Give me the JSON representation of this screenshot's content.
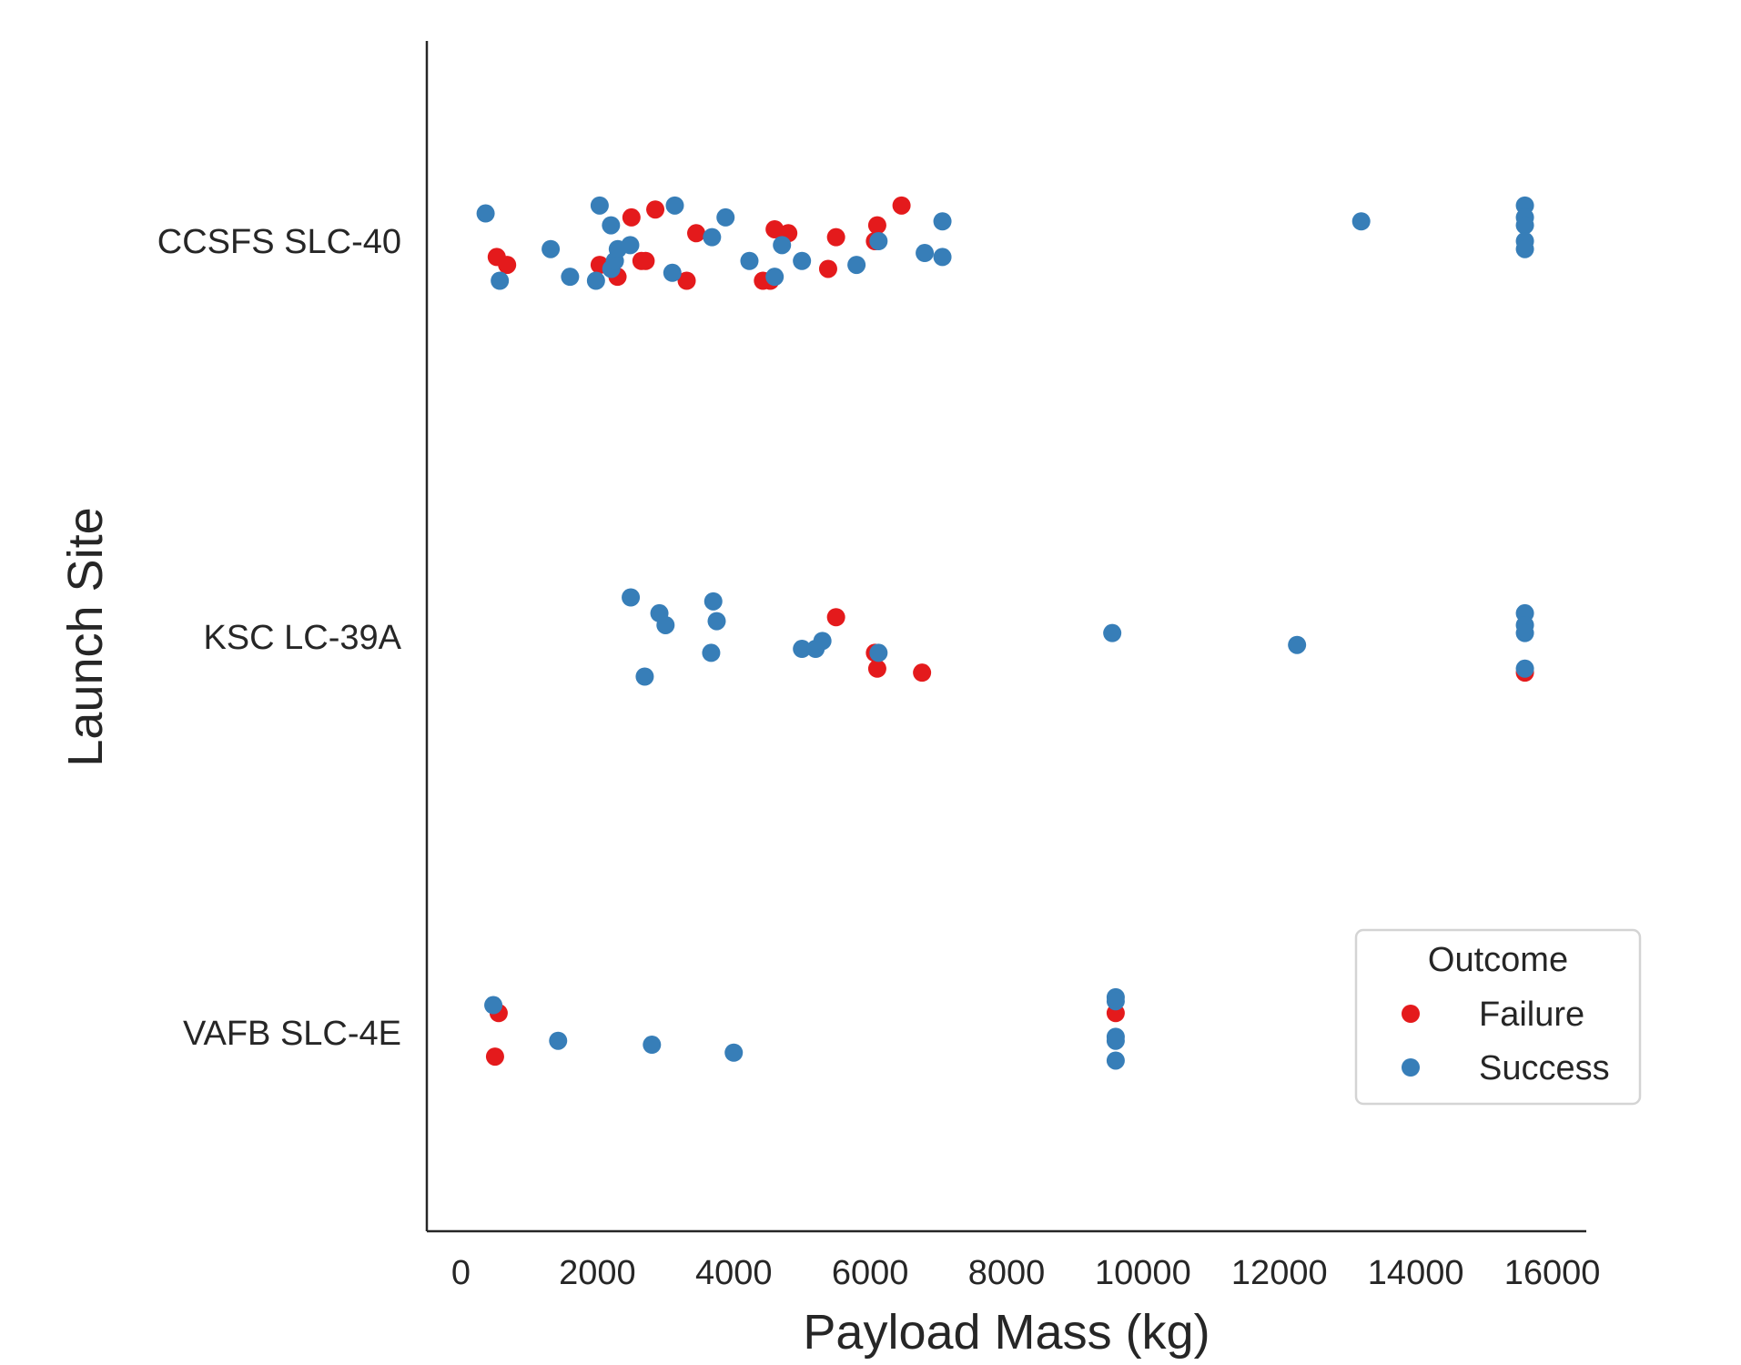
{
  "chart_data": {
    "type": "scatter",
    "subtype": "strip",
    "title": "",
    "xlabel": "Payload Mass (kg)",
    "ylabel": "Launch Site",
    "xlim": [
      -500,
      16500
    ],
    "xticks": [
      0,
      2000,
      4000,
      6000,
      8000,
      10000,
      12000,
      14000,
      16000
    ],
    "categories": [
      "CCSFS SLC-40",
      "KSC LC-39A",
      "VAFB SLC-4E"
    ],
    "grid": false,
    "legend": {
      "title": "Outcome",
      "position": "lower-right",
      "entries": [
        {
          "label": "Failure",
          "color": "#e41a1c"
        },
        {
          "label": "Success",
          "color": "#377eb8"
        }
      ]
    },
    "colors": {
      "Failure": "#e41a1c",
      "Success": "#377eb8"
    },
    "series": [
      {
        "name": "Failure",
        "points": [
          {
            "site": "CCSFS SLC-40",
            "x": 525,
            "jitter": -0.04
          },
          {
            "site": "CCSFS SLC-40",
            "x": 677,
            "jitter": -0.06
          },
          {
            "site": "CCSFS SLC-40",
            "x": 2034,
            "jitter": -0.06
          },
          {
            "site": "CCSFS SLC-40",
            "x": 2296,
            "jitter": -0.09
          },
          {
            "site": "CCSFS SLC-40",
            "x": 2500,
            "jitter": 0.06
          },
          {
            "site": "CCSFS SLC-40",
            "x": 2647,
            "jitter": -0.05
          },
          {
            "site": "CCSFS SLC-40",
            "x": 2708,
            "jitter": -0.05
          },
          {
            "site": "CCSFS SLC-40",
            "x": 2850,
            "jitter": 0.08
          },
          {
            "site": "CCSFS SLC-40",
            "x": 3310,
            "jitter": -0.1
          },
          {
            "site": "CCSFS SLC-40",
            "x": 3450,
            "jitter": 0.02
          },
          {
            "site": "CCSFS SLC-40",
            "x": 4428,
            "jitter": -0.1
          },
          {
            "site": "CCSFS SLC-40",
            "x": 4535,
            "jitter": -0.1
          },
          {
            "site": "CCSFS SLC-40",
            "x": 4600,
            "jitter": 0.03
          },
          {
            "site": "CCSFS SLC-40",
            "x": 4800,
            "jitter": 0.02
          },
          {
            "site": "CCSFS SLC-40",
            "x": 5384,
            "jitter": -0.07
          },
          {
            "site": "CCSFS SLC-40",
            "x": 5500,
            "jitter": 0.01
          },
          {
            "site": "CCSFS SLC-40",
            "x": 6070,
            "jitter": 0.0
          },
          {
            "site": "CCSFS SLC-40",
            "x": 6104,
            "jitter": 0.04
          },
          {
            "site": "CCSFS SLC-40",
            "x": 6460,
            "jitter": 0.09
          },
          {
            "site": "KSC LC-39A",
            "x": 5500,
            "jitter": 0.05
          },
          {
            "site": "KSC LC-39A",
            "x": 6070,
            "jitter": -0.04
          },
          {
            "site": "KSC LC-39A",
            "x": 6104,
            "jitter": -0.08
          },
          {
            "site": "KSC LC-39A",
            "x": 6761,
            "jitter": -0.09
          },
          {
            "site": "KSC LC-39A",
            "x": 15600,
            "jitter": -0.09
          },
          {
            "site": "VAFB SLC-4E",
            "x": 553,
            "jitter": 0.05
          },
          {
            "site": "VAFB SLC-4E",
            "x": 500,
            "jitter": -0.06
          },
          {
            "site": "VAFB SLC-4E",
            "x": 9600,
            "jitter": 0.05
          }
        ]
      },
      {
        "name": "Success",
        "points": [
          {
            "site": "CCSFS SLC-40",
            "x": 362,
            "jitter": 0.07
          },
          {
            "site": "CCSFS SLC-40",
            "x": 570,
            "jitter": -0.1
          },
          {
            "site": "CCSFS SLC-40",
            "x": 1316,
            "jitter": -0.02
          },
          {
            "site": "CCSFS SLC-40",
            "x": 1600,
            "jitter": -0.09
          },
          {
            "site": "CCSFS SLC-40",
            "x": 1980,
            "jitter": -0.1
          },
          {
            "site": "CCSFS SLC-40",
            "x": 2034,
            "jitter": 0.09
          },
          {
            "site": "CCSFS SLC-40",
            "x": 2200,
            "jitter": 0.04
          },
          {
            "site": "CCSFS SLC-40",
            "x": 2205,
            "jitter": -0.07
          },
          {
            "site": "CCSFS SLC-40",
            "x": 2257,
            "jitter": -0.05
          },
          {
            "site": "CCSFS SLC-40",
            "x": 2300,
            "jitter": -0.02
          },
          {
            "site": "CCSFS SLC-40",
            "x": 2482,
            "jitter": -0.01
          },
          {
            "site": "CCSFS SLC-40",
            "x": 3100,
            "jitter": -0.08
          },
          {
            "site": "CCSFS SLC-40",
            "x": 3136,
            "jitter": 0.09
          },
          {
            "site": "CCSFS SLC-40",
            "x": 3681,
            "jitter": 0.01
          },
          {
            "site": "CCSFS SLC-40",
            "x": 3880,
            "jitter": 0.06
          },
          {
            "site": "CCSFS SLC-40",
            "x": 4230,
            "jitter": -0.05
          },
          {
            "site": "CCSFS SLC-40",
            "x": 4600,
            "jitter": -0.09
          },
          {
            "site": "CCSFS SLC-40",
            "x": 4707,
            "jitter": -0.01
          },
          {
            "site": "CCSFS SLC-40",
            "x": 5000,
            "jitter": -0.05
          },
          {
            "site": "CCSFS SLC-40",
            "x": 5800,
            "jitter": -0.06
          },
          {
            "site": "CCSFS SLC-40",
            "x": 6123,
            "jitter": 0.0
          },
          {
            "site": "CCSFS SLC-40",
            "x": 6800,
            "jitter": -0.03
          },
          {
            "site": "CCSFS SLC-40",
            "x": 7060,
            "jitter": 0.05
          },
          {
            "site": "CCSFS SLC-40",
            "x": 7060,
            "jitter": -0.04
          },
          {
            "site": "CCSFS SLC-40",
            "x": 13200,
            "jitter": 0.05
          },
          {
            "site": "CCSFS SLC-40",
            "x": 15600,
            "jitter": 0.09
          },
          {
            "site": "CCSFS SLC-40",
            "x": 15600,
            "jitter": 0.06
          },
          {
            "site": "CCSFS SLC-40",
            "x": 15600,
            "jitter": 0.04
          },
          {
            "site": "CCSFS SLC-40",
            "x": 15600,
            "jitter": 0.0
          },
          {
            "site": "CCSFS SLC-40",
            "x": 15600,
            "jitter": -0.02
          },
          {
            "site": "KSC LC-39A",
            "x": 2490,
            "jitter": 0.1
          },
          {
            "site": "KSC LC-39A",
            "x": 2695,
            "jitter": -0.1
          },
          {
            "site": "KSC LC-39A",
            "x": 2910,
            "jitter": 0.06
          },
          {
            "site": "KSC LC-39A",
            "x": 3000,
            "jitter": 0.03
          },
          {
            "site": "KSC LC-39A",
            "x": 3669,
            "jitter": -0.04
          },
          {
            "site": "KSC LC-39A",
            "x": 3700,
            "jitter": 0.09
          },
          {
            "site": "KSC LC-39A",
            "x": 3750,
            "jitter": 0.04
          },
          {
            "site": "KSC LC-39A",
            "x": 5000,
            "jitter": -0.03
          },
          {
            "site": "KSC LC-39A",
            "x": 5200,
            "jitter": -0.03
          },
          {
            "site": "KSC LC-39A",
            "x": 5300,
            "jitter": -0.01
          },
          {
            "site": "KSC LC-39A",
            "x": 6123,
            "jitter": -0.04
          },
          {
            "site": "KSC LC-39A",
            "x": 9550,
            "jitter": 0.01
          },
          {
            "site": "KSC LC-39A",
            "x": 12259,
            "jitter": -0.02
          },
          {
            "site": "KSC LC-39A",
            "x": 15600,
            "jitter": 0.06
          },
          {
            "site": "KSC LC-39A",
            "x": 15600,
            "jitter": 0.03
          },
          {
            "site": "KSC LC-39A",
            "x": 15600,
            "jitter": 0.01
          },
          {
            "site": "KSC LC-39A",
            "x": 15600,
            "jitter": -0.08
          },
          {
            "site": "VAFB SLC-4E",
            "x": 475,
            "jitter": 0.07
          },
          {
            "site": "VAFB SLC-4E",
            "x": 1425,
            "jitter": -0.02
          },
          {
            "site": "VAFB SLC-4E",
            "x": 2800,
            "jitter": -0.03
          },
          {
            "site": "VAFB SLC-4E",
            "x": 4000,
            "jitter": -0.05
          },
          {
            "site": "VAFB SLC-4E",
            "x": 9600,
            "jitter": 0.09
          },
          {
            "site": "VAFB SLC-4E",
            "x": 9600,
            "jitter": 0.08
          },
          {
            "site": "VAFB SLC-4E",
            "x": 9600,
            "jitter": -0.01
          },
          {
            "site": "VAFB SLC-4E",
            "x": 9600,
            "jitter": -0.02
          },
          {
            "site": "VAFB SLC-4E",
            "x": 9600,
            "jitter": -0.07
          }
        ]
      }
    ]
  }
}
